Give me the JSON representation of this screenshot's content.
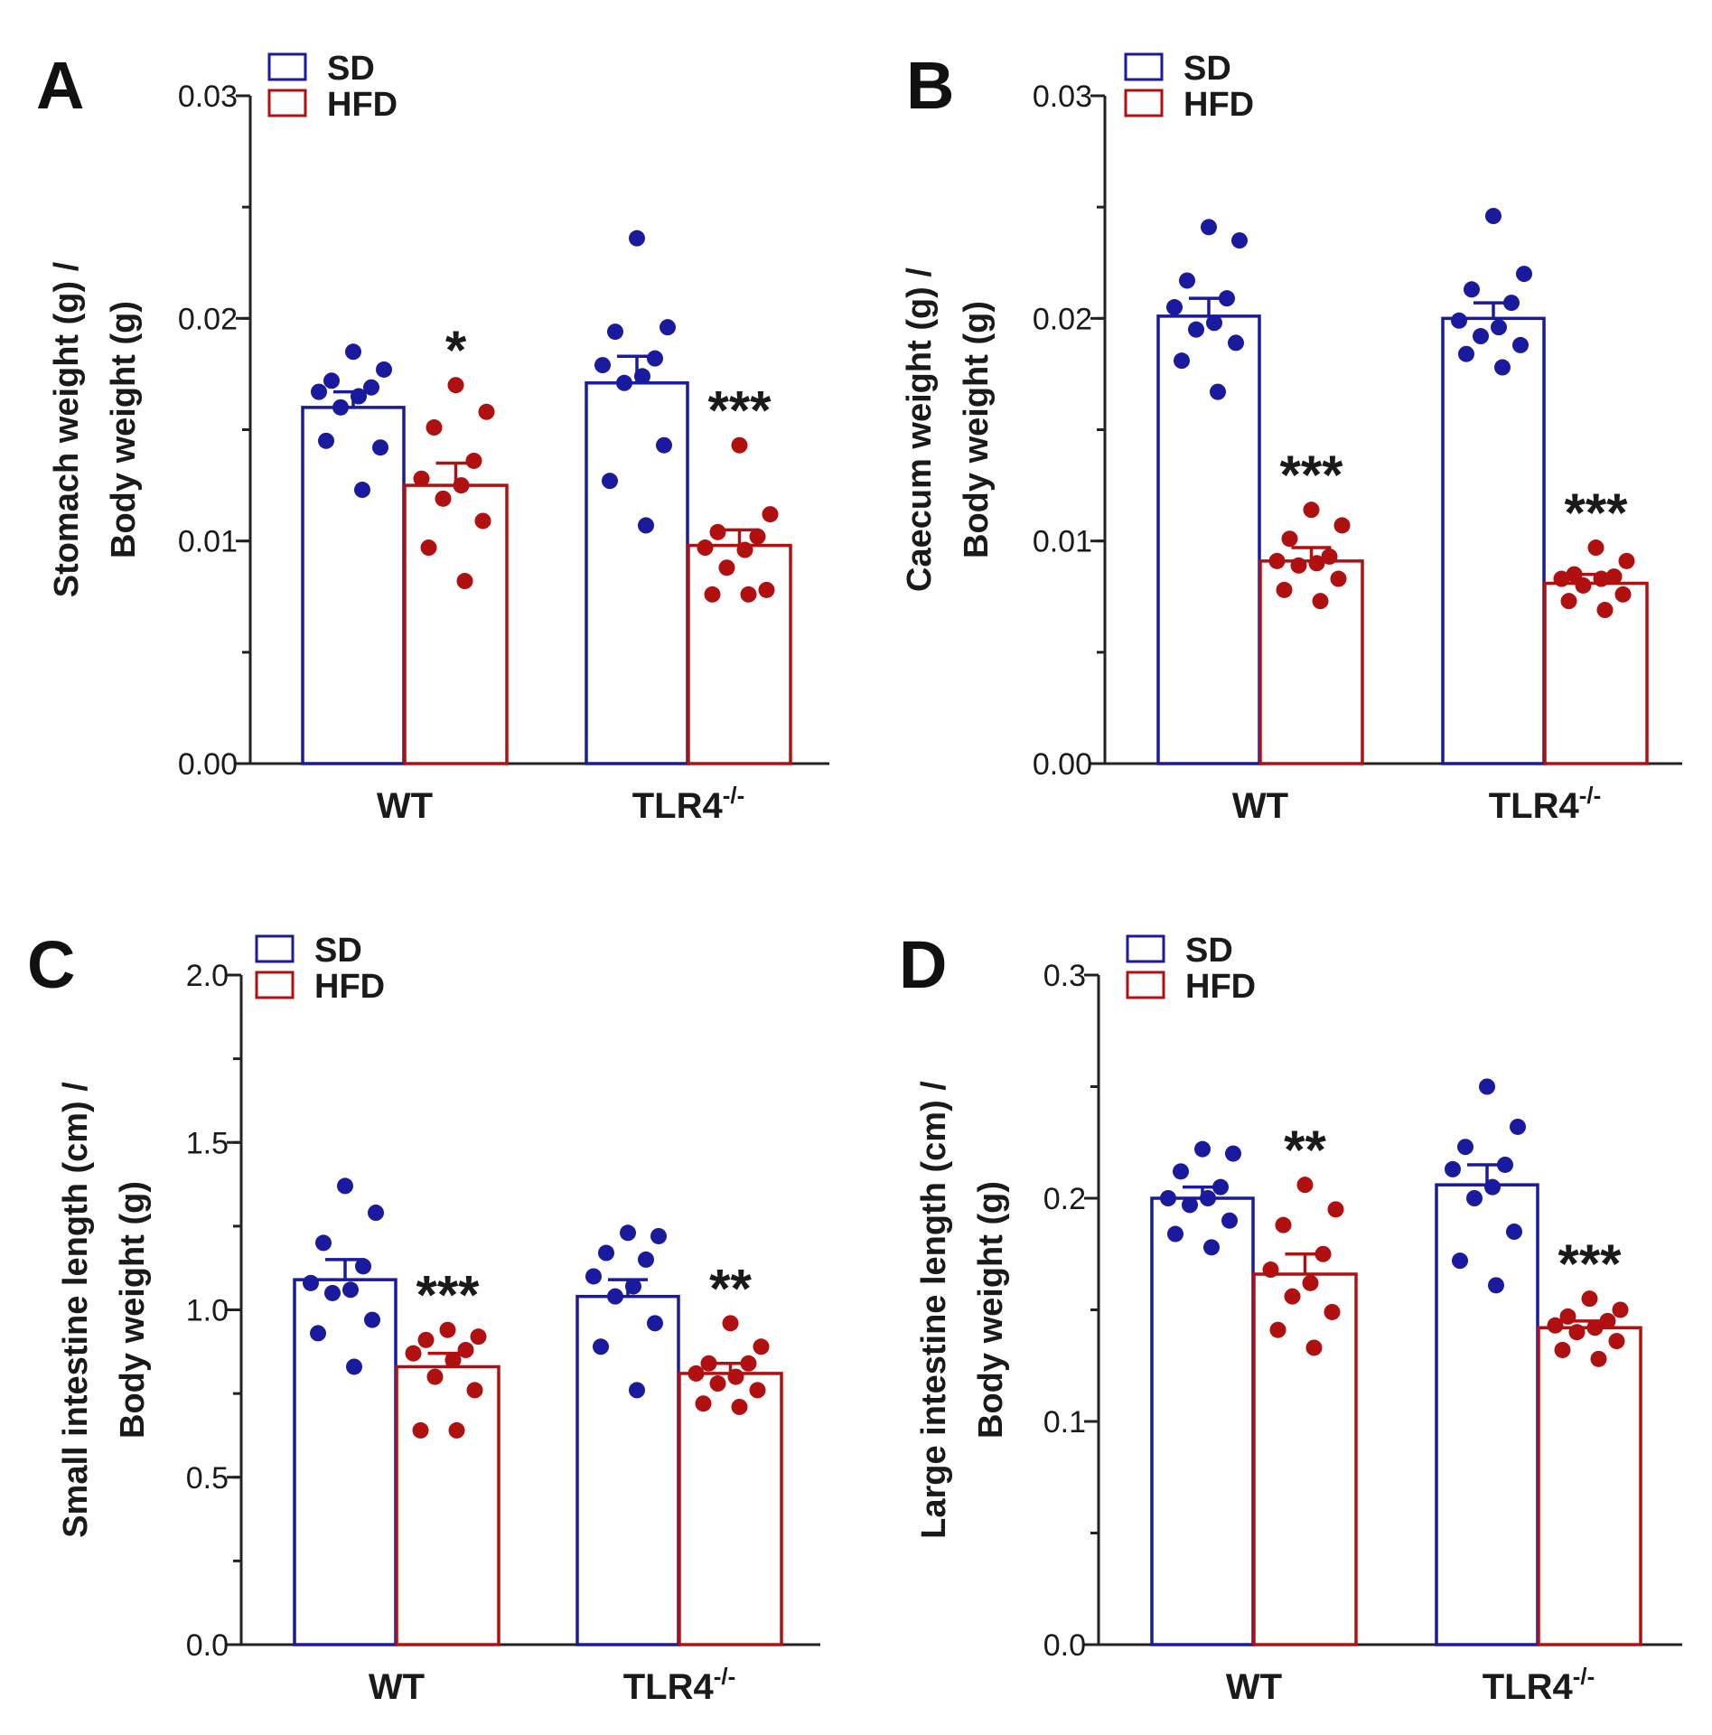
{
  "colors": {
    "SD": "#1a1a9e",
    "HFD": "#b01010",
    "axis": "#222222"
  },
  "chart_data": [
    {
      "panel": "A",
      "type": "bar",
      "ylabel_line1": "Stomach weight (g) /",
      "ylabel_line2": "Body weight (g)",
      "ylim": [
        0,
        0.03
      ],
      "yticks": [
        "0.00",
        "0.01",
        "0.02",
        "0.03"
      ],
      "ytick_values": [
        0,
        0.01,
        0.02,
        0.03
      ],
      "minor_step": 0.005,
      "categories": [
        {
          "base": "WT",
          "sup": ""
        },
        {
          "base": "TLR4",
          "sup": "-/-"
        }
      ],
      "legend": [
        "SD",
        "HFD"
      ],
      "series": [
        {
          "name": "SD",
          "means": [
            0.016,
            0.0171
          ],
          "sem": [
            0.0007,
            0.0012
          ],
          "points": [
            [
              0.0185,
              0.0177,
              0.0172,
              0.0169,
              0.0167,
              0.0165,
              0.016,
              0.0142,
              0.0145,
              0.0123
            ],
            [
              0.0236,
              0.0196,
              0.0194,
              0.0182,
              0.0179,
              0.0174,
              0.0171,
              0.0143,
              0.0127,
              0.0107
            ]
          ]
        },
        {
          "name": "HFD",
          "means": [
            0.0125,
            0.0098
          ],
          "sem": [
            0.001,
            0.0007
          ],
          "points": [
            [
              0.017,
              0.0158,
              0.0151,
              0.0136,
              0.0128,
              0.0125,
              0.0119,
              0.0109,
              0.0097,
              0.0082
            ],
            [
              0.0143,
              0.0112,
              0.0104,
              0.0102,
              0.0097,
              0.0096,
              0.0088,
              0.0078,
              0.0076,
              0.0076
            ]
          ]
        }
      ],
      "significance": [
        "*",
        "***"
      ]
    },
    {
      "panel": "B",
      "type": "bar",
      "ylabel_line1": "Caecum weight (g) /",
      "ylabel_line2": "Body weight (g)",
      "ylim": [
        0,
        0.03
      ],
      "yticks": [
        "0.00",
        "0.01",
        "0.02",
        "0.03"
      ],
      "ytick_values": [
        0,
        0.01,
        0.02,
        0.03
      ],
      "minor_step": 0.005,
      "categories": [
        {
          "base": "WT",
          "sup": ""
        },
        {
          "base": "TLR4",
          "sup": "-/-"
        }
      ],
      "legend": [
        "SD",
        "HFD"
      ],
      "series": [
        {
          "name": "SD",
          "means": [
            0.0201,
            0.02
          ],
          "sem": [
            0.0008,
            0.0007
          ],
          "points": [
            [
              0.0241,
              0.0235,
              0.0217,
              0.0209,
              0.0205,
              0.0198,
              0.0195,
              0.0189,
              0.0181,
              0.0167
            ],
            [
              0.0246,
              0.022,
              0.0213,
              0.0207,
              0.0199,
              0.0196,
              0.0192,
              0.0188,
              0.0184,
              0.0178
            ]
          ]
        },
        {
          "name": "HFD",
          "means": [
            0.0091,
            0.0081
          ],
          "sem": [
            0.0006,
            0.0004
          ],
          "points": [
            [
              0.0114,
              0.0107,
              0.0101,
              0.0093,
              0.0091,
              0.009,
              0.0089,
              0.0083,
              0.0078,
              0.0073
            ],
            [
              0.0097,
              0.0091,
              0.0085,
              0.0084,
              0.0083,
              0.0083,
              0.008,
              0.0076,
              0.0073,
              0.0069
            ]
          ]
        }
      ],
      "significance": [
        "***",
        "***"
      ]
    },
    {
      "panel": "C",
      "type": "bar",
      "ylabel_line1": "Small intestine length (cm) /",
      "ylabel_line2": "Body weight (g)",
      "ylim": [
        0,
        2.0
      ],
      "yticks": [
        "0.0",
        "0.5",
        "1.0",
        "1.5",
        "2.0"
      ],
      "ytick_values": [
        0,
        0.5,
        1.0,
        1.5,
        2.0
      ],
      "minor_step": 0.25,
      "categories": [
        {
          "base": "WT",
          "sup": ""
        },
        {
          "base": "TLR4",
          "sup": "-/-"
        }
      ],
      "legend": [
        "SD",
        "HFD"
      ],
      "series": [
        {
          "name": "SD",
          "means": [
            1.09,
            1.04
          ],
          "sem": [
            0.06,
            0.05
          ],
          "points": [
            [
              1.37,
              1.29,
              1.2,
              1.13,
              1.08,
              1.06,
              1.05,
              0.97,
              0.93,
              0.83
            ],
            [
              1.23,
              1.22,
              1.17,
              1.15,
              1.1,
              1.07,
              1.04,
              0.96,
              0.89,
              0.76
            ]
          ]
        },
        {
          "name": "HFD",
          "means": [
            0.83,
            0.81
          ],
          "sem": [
            0.04,
            0.03
          ],
          "points": [
            [
              0.94,
              0.92,
              0.91,
              0.88,
              0.87,
              0.85,
              0.8,
              0.76,
              0.64,
              0.64
            ],
            [
              0.96,
              0.89,
              0.84,
              0.84,
              0.81,
              0.8,
              0.78,
              0.76,
              0.72,
              0.71
            ]
          ]
        }
      ],
      "significance": [
        "***",
        "**"
      ]
    },
    {
      "panel": "D",
      "type": "bar",
      "ylabel_line1": "Large intestine length (cm) /",
      "ylabel_line2": "Body weight (g)",
      "ylim": [
        0,
        0.3
      ],
      "yticks": [
        "0.0",
        "0.1",
        "0.2",
        "0.3"
      ],
      "ytick_values": [
        0,
        0.1,
        0.2,
        0.3
      ],
      "minor_step": 0.05,
      "categories": [
        {
          "base": "WT",
          "sup": ""
        },
        {
          "base": "TLR4",
          "sup": "-/-"
        }
      ],
      "legend": [
        "SD",
        "HFD"
      ],
      "series": [
        {
          "name": "SD",
          "means": [
            0.2,
            0.206
          ],
          "sem": [
            0.005,
            0.009
          ],
          "points": [
            [
              0.222,
              0.22,
              0.212,
              0.205,
              0.2,
              0.2,
              0.197,
              0.19,
              0.184,
              0.178
            ],
            [
              0.25,
              0.232,
              0.223,
              0.215,
              0.213,
              0.205,
              0.2,
              0.185,
              0.172,
              0.161
            ]
          ]
        },
        {
          "name": "HFD",
          "means": [
            0.166,
            0.142
          ],
          "sem": [
            0.009,
            0.003
          ],
          "points": [
            [
              0.206,
              0.195,
              0.188,
              0.175,
              0.168,
              0.162,
              0.156,
              0.149,
              0.141,
              0.133
            ],
            [
              0.155,
              0.15,
              0.147,
              0.145,
              0.143,
              0.142,
              0.14,
              0.136,
              0.132,
              0.128
            ]
          ]
        }
      ],
      "significance": [
        "**",
        "***"
      ]
    }
  ]
}
